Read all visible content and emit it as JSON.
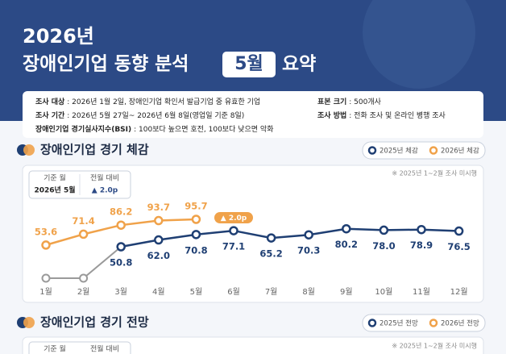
{
  "header": {
    "year": "2026년",
    "title_before": "장애인기업 동향 분석",
    "highlight": "5월",
    "title_after": "요약"
  },
  "survey_info": {
    "left": [
      {
        "label": "조사 대상",
        "text": ": 2026년 1월 2일, 장애인기업 확인서 발급기업 중 유효한 기업"
      },
      {
        "label": "조사 기간",
        "text": ": 2026년 5월 27일~ 2026년 6월 8일(영업일 기준 8일)"
      },
      {
        "label": "장애인기업 경기실사지수(BSI)",
        "text": ": 100보다 높으면 호전, 100보다 낮으면 악화"
      }
    ],
    "right": [
      {
        "label": "표본 크기",
        "text": ": 500개사"
      },
      {
        "label": "조사 방법",
        "text": ": 전화 조사 및 온라인 병행 조사"
      }
    ]
  },
  "chart_data": {
    "type": "line",
    "title": "장애인기업 경기 체감",
    "note": "※ 2025년 1~2월 조사 미시행",
    "info_box": {
      "base_month_label": "기준 월",
      "base_month": "2026년 5월",
      "change_label": "전월 대비",
      "change": "▲ 2.0p"
    },
    "annotation": "▲ 2.0p",
    "categories": [
      "1월",
      "2월",
      "3월",
      "4월",
      "5월",
      "6월",
      "7월",
      "8월",
      "9월",
      "10월",
      "11월",
      "12월"
    ],
    "series": [
      {
        "name": "2025년 체감",
        "color": "#1f3f73",
        "values": [
          null,
          null,
          50.8,
          62.0,
          70.8,
          77.1,
          65.2,
          70.3,
          80.2,
          78.0,
          78.9,
          76.5
        ],
        "value_labels": [
          null,
          null,
          "50.8",
          "62.0",
          "70.8",
          "77.1",
          "65.2",
          "70.3",
          "80.2",
          "78.0",
          "78.9",
          "76.5"
        ]
      },
      {
        "name": "2026년 체감",
        "color": "#f0a24a",
        "values": [
          53.6,
          71.4,
          86.2,
          93.7,
          95.7,
          null,
          null,
          null,
          null,
          null,
          null,
          null
        ],
        "value_labels": [
          "53.6",
          "71.4",
          "86.2",
          "93.7",
          "95.7",
          null,
          null,
          null,
          null,
          null,
          null,
          null
        ]
      }
    ]
  },
  "outlook_section": {
    "title": "장애인기업 경기 전망",
    "legend": [
      "2025년 전망",
      "2026년 전망"
    ],
    "base_month_label": "기준 월",
    "change_label": "전월 대비",
    "note": "※ 2025년 1~2월 조사 미시행"
  }
}
